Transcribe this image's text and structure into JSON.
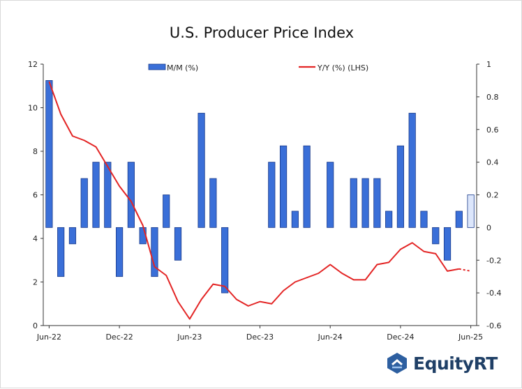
{
  "chart_data": {
    "type": "bar+line",
    "title": "U.S. Producer Price Index",
    "x_tick_labels": [
      "Jun-22",
      "Dec-22",
      "Jun-23",
      "Dec-23",
      "Jun-24",
      "Dec-24",
      "Jun-25"
    ],
    "left_axis": {
      "ticks": [
        0,
        2,
        4,
        6,
        8,
        10,
        12
      ],
      "ylim": [
        0,
        12
      ]
    },
    "right_axis": {
      "ticks": [
        "1",
        "0.8",
        "0.6",
        "0.4",
        "0.2",
        "0",
        "-0.2",
        "-0.4",
        "-0.6"
      ],
      "ylim": [
        -0.6,
        1
      ]
    },
    "categories": [
      "Jun-22",
      "Jul-22",
      "Aug-22",
      "Sep-22",
      "Oct-22",
      "Nov-22",
      "Dec-22",
      "Jan-23",
      "Feb-23",
      "Mar-23",
      "Apr-23",
      "May-23",
      "Jun-23",
      "Jul-23",
      "Aug-23",
      "Sep-23",
      "Oct-23",
      "Nov-23",
      "Dec-23",
      "Jan-24",
      "Feb-24",
      "Mar-24",
      "Apr-24",
      "May-24",
      "Jun-24",
      "Jul-24",
      "Aug-24",
      "Sep-24",
      "Oct-24",
      "Nov-24",
      "Dec-24",
      "Jan-25",
      "Feb-25",
      "Mar-25",
      "Apr-25",
      "May-25",
      "Jun-25"
    ],
    "series": [
      {
        "name": "M/M (%)",
        "type": "bar",
        "axis": "right",
        "color": "#3a6fd8",
        "values": [
          0.9,
          -0.3,
          -0.1,
          0.3,
          0.4,
          0.4,
          -0.3,
          0.4,
          -0.1,
          -0.3,
          0.2,
          -0.2,
          0.0,
          0.7,
          0.3,
          -0.4,
          0.0,
          0.0,
          0.0,
          0.4,
          0.5,
          0.1,
          0.5,
          0.0,
          0.4,
          0.0,
          0.3,
          0.3,
          0.3,
          0.1,
          0.5,
          0.7,
          0.1,
          -0.1,
          -0.2,
          0.1,
          0.2
        ],
        "highlight_last_color": "#dce6fb"
      },
      {
        "name": "Y/Y (%) (LHS)",
        "type": "line",
        "axis": "left",
        "color": "#e32424",
        "values": [
          11.2,
          9.7,
          8.7,
          8.5,
          8.2,
          7.3,
          6.4,
          5.7,
          4.6,
          2.7,
          2.3,
          1.1,
          0.3,
          1.2,
          1.9,
          1.8,
          1.2,
          0.9,
          1.1,
          1.0,
          1.6,
          2.0,
          2.2,
          2.4,
          2.8,
          2.4,
          2.1,
          2.1,
          2.8,
          2.9,
          3.5,
          3.8,
          3.4,
          3.3,
          2.5,
          2.6,
          2.5
        ],
        "dashed_last_segment": true
      }
    ],
    "legend": {
      "placement": "top"
    }
  },
  "logo": {
    "text": "EquityRT"
  }
}
